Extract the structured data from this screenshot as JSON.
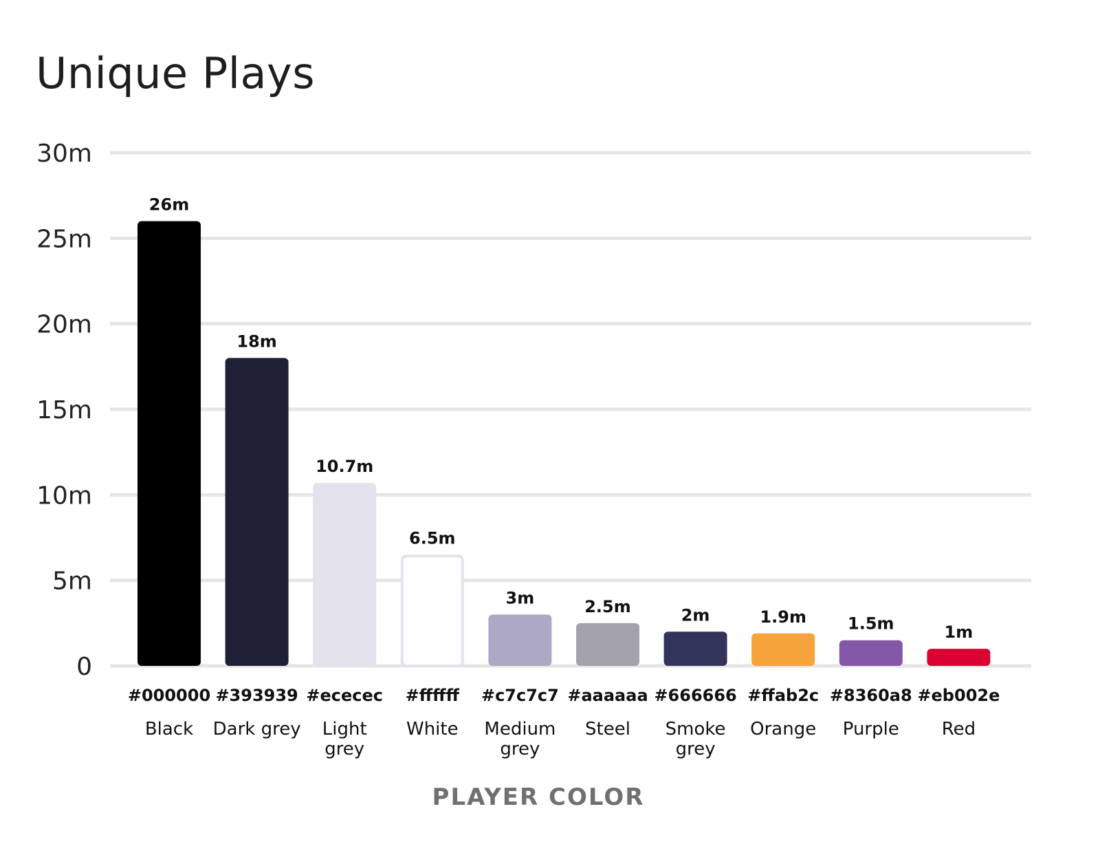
{
  "chart_data": {
    "type": "bar",
    "title": "Unique Plays",
    "xlabel": "PLAYER COLOR",
    "ylabel": "",
    "ylim": [
      0,
      30
    ],
    "y_ticks": [
      {
        "value": 0,
        "label": "0"
      },
      {
        "value": 5,
        "label": "5m"
      },
      {
        "value": 10,
        "label": "10m"
      },
      {
        "value": 15,
        "label": "15m"
      },
      {
        "value": 20,
        "label": "20m"
      },
      {
        "value": 25,
        "label": "25m"
      },
      {
        "value": 30,
        "label": "30m"
      }
    ],
    "grid": true,
    "categories": [
      {
        "hex": "#000000",
        "name": [
          "Black"
        ]
      },
      {
        "hex": "#393939",
        "name": [
          "Dark grey"
        ]
      },
      {
        "hex": "#ececec",
        "name": [
          "Light",
          "grey"
        ]
      },
      {
        "hex": "#ffffff",
        "name": [
          "White"
        ]
      },
      {
        "hex": "#c7c7c7",
        "name": [
          "Medium",
          "grey"
        ]
      },
      {
        "hex": "#aaaaaa",
        "name": [
          "Steel"
        ]
      },
      {
        "hex": "#666666",
        "name": [
          "Smoke",
          "grey"
        ]
      },
      {
        "hex": "#ffab2c",
        "name": [
          "Orange"
        ]
      },
      {
        "hex": "#8360a8",
        "name": [
          "Purple"
        ]
      },
      {
        "hex": "#eb002e",
        "name": [
          "Red"
        ]
      }
    ],
    "values": [
      26,
      18,
      10.7,
      6.5,
      3,
      2.5,
      2,
      1.9,
      1.5,
      1
    ],
    "value_labels": [
      "26m",
      "18m",
      "10.7m",
      "6.5m",
      "3m",
      "2.5m",
      "2m",
      "1.9m",
      "1.5m",
      "1m"
    ],
    "bar_colors": [
      "#000000",
      "#1f1f35",
      "#e4e2ec",
      "#ffffff",
      "#ada9c4",
      "#a4a2ab",
      "#33345a",
      "#f5a33a",
      "#8457a9",
      "#db0233"
    ]
  }
}
